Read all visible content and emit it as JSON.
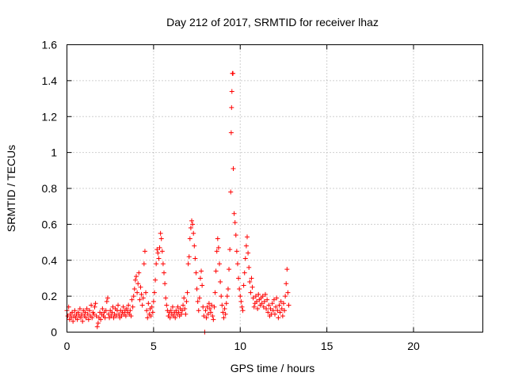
{
  "chart_data": {
    "type": "scatter",
    "title": "Day 212 of 2017, SRMTID for receiver lhaz",
    "xlabel": "GPS time / hours",
    "ylabel": "SRMTID / TECUs",
    "xlim": [
      0,
      24
    ],
    "ylim": [
      0,
      1.6
    ],
    "xticks": [
      0,
      5,
      10,
      15,
      20
    ],
    "xtick_labels": [
      "0",
      "5",
      "10",
      "15",
      "20"
    ],
    "yticks": [
      0,
      0.2,
      0.4,
      0.6,
      0.8,
      1,
      1.2,
      1.4,
      1.6
    ],
    "ytick_labels": [
      "0",
      "0.2",
      "0.4",
      "0.6",
      "0.8",
      "1",
      "1.2",
      "1.4",
      "1.6"
    ],
    "grid": true,
    "marker": "+",
    "series": [
      {
        "name": "SRMTID",
        "color": "#ff0000",
        "points": [
          [
            0.0,
            0.12
          ],
          [
            0.05,
            0.09
          ],
          [
            0.1,
            0.14
          ],
          [
            0.15,
            0.07
          ],
          [
            0.2,
            0.1
          ],
          [
            0.25,
            0.08
          ],
          [
            0.3,
            0.11
          ],
          [
            0.35,
            0.06
          ],
          [
            0.4,
            0.09
          ],
          [
            0.45,
            0.12
          ],
          [
            0.5,
            0.08
          ],
          [
            0.55,
            0.1
          ],
          [
            0.6,
            0.07
          ],
          [
            0.65,
            0.11
          ],
          [
            0.7,
            0.09
          ],
          [
            0.75,
            0.13
          ],
          [
            0.8,
            0.08
          ],
          [
            0.85,
            0.1
          ],
          [
            0.9,
            0.06
          ],
          [
            0.95,
            0.12
          ],
          [
            1.0,
            0.09
          ],
          [
            1.05,
            0.11
          ],
          [
            1.1,
            0.08
          ],
          [
            1.15,
            0.13
          ],
          [
            1.2,
            0.1
          ],
          [
            1.25,
            0.07
          ],
          [
            1.3,
            0.12
          ],
          [
            1.35,
            0.09
          ],
          [
            1.4,
            0.15
          ],
          [
            1.45,
            0.08
          ],
          [
            1.5,
            0.11
          ],
          [
            1.55,
            0.1
          ],
          [
            1.6,
            0.14
          ],
          [
            1.65,
            0.16
          ],
          [
            1.7,
            0.09
          ],
          [
            1.75,
            0.03
          ],
          [
            1.8,
            0.05
          ],
          [
            1.85,
            0.08
          ],
          [
            1.9,
            0.11
          ],
          [
            1.95,
            0.07
          ],
          [
            2.0,
            0.1
          ],
          [
            2.05,
            0.13
          ],
          [
            2.1,
            0.09
          ],
          [
            2.15,
            0.11
          ],
          [
            2.2,
            0.08
          ],
          [
            2.25,
            0.12
          ],
          [
            2.3,
            0.17
          ],
          [
            2.35,
            0.19
          ],
          [
            2.4,
            0.1
          ],
          [
            2.45,
            0.08
          ],
          [
            2.5,
            0.12
          ],
          [
            2.55,
            0.09
          ],
          [
            2.6,
            0.11
          ],
          [
            2.65,
            0.14
          ],
          [
            2.7,
            0.08
          ],
          [
            2.75,
            0.1
          ],
          [
            2.8,
            0.13
          ],
          [
            2.85,
            0.09
          ],
          [
            2.9,
            0.12
          ],
          [
            2.95,
            0.15
          ],
          [
            3.0,
            0.1
          ],
          [
            3.05,
            0.08
          ],
          [
            3.1,
            0.12
          ],
          [
            3.15,
            0.09
          ],
          [
            3.2,
            0.11
          ],
          [
            3.25,
            0.14
          ],
          [
            3.3,
            0.1
          ],
          [
            3.35,
            0.12
          ],
          [
            3.4,
            0.09
          ],
          [
            3.45,
            0.13
          ],
          [
            3.5,
            0.11
          ],
          [
            3.55,
            0.15
          ],
          [
            3.6,
            0.1
          ],
          [
            3.65,
            0.12
          ],
          [
            3.7,
            0.09
          ],
          [
            3.75,
            0.18
          ],
          [
            3.8,
            0.14
          ],
          [
            3.85,
            0.2
          ],
          [
            3.9,
            0.24
          ],
          [
            3.95,
            0.29
          ],
          [
            4.0,
            0.31
          ],
          [
            4.05,
            0.22
          ],
          [
            4.1,
            0.27
          ],
          [
            4.15,
            0.33
          ],
          [
            4.2,
            0.18
          ],
          [
            4.25,
            0.25
          ],
          [
            4.3,
            0.21
          ],
          [
            4.35,
            0.15
          ],
          [
            4.4,
            0.19
          ],
          [
            4.45,
            0.38
          ],
          [
            4.5,
            0.45
          ],
          [
            4.55,
            0.22
          ],
          [
            4.6,
            0.12
          ],
          [
            4.65,
            0.08
          ],
          [
            4.7,
            0.16
          ],
          [
            4.75,
            0.1
          ],
          [
            4.8,
            0.13
          ],
          [
            4.85,
            0.09
          ],
          [
            4.9,
            0.14
          ],
          [
            4.95,
            0.11
          ],
          [
            5.0,
            0.17
          ],
          [
            5.05,
            0.22
          ],
          [
            5.1,
            0.29
          ],
          [
            5.15,
            0.38
          ],
          [
            5.2,
            0.46
          ],
          [
            5.25,
            0.44
          ],
          [
            5.3,
            0.41
          ],
          [
            5.35,
            0.47
          ],
          [
            5.4,
            0.55
          ],
          [
            5.45,
            0.52
          ],
          [
            5.5,
            0.45
          ],
          [
            5.55,
            0.38
          ],
          [
            5.6,
            0.33
          ],
          [
            5.65,
            0.27
          ],
          [
            5.7,
            0.19
          ],
          [
            5.75,
            0.15
          ],
          [
            5.8,
            0.12
          ],
          [
            5.85,
            0.09
          ],
          [
            5.9,
            0.11
          ],
          [
            5.95,
            0.08
          ],
          [
            6.0,
            0.12
          ],
          [
            6.05,
            0.1
          ],
          [
            6.1,
            0.14
          ],
          [
            6.15,
            0.09
          ],
          [
            6.2,
            0.11
          ],
          [
            6.25,
            0.08
          ],
          [
            6.3,
            0.12
          ],
          [
            6.35,
            0.1
          ],
          [
            6.4,
            0.14
          ],
          [
            6.45,
            0.11
          ],
          [
            6.5,
            0.09
          ],
          [
            6.55,
            0.13
          ],
          [
            6.6,
            0.1
          ],
          [
            6.65,
            0.12
          ],
          [
            6.7,
            0.15
          ],
          [
            6.75,
            0.19
          ],
          [
            6.8,
            0.13
          ],
          [
            6.85,
            0.1
          ],
          [
            6.9,
            0.17
          ],
          [
            6.95,
            0.22
          ],
          [
            7.0,
            0.38
          ],
          [
            7.05,
            0.42
          ],
          [
            7.1,
            0.52
          ],
          [
            7.15,
            0.58
          ],
          [
            7.2,
            0.62
          ],
          [
            7.25,
            0.6
          ],
          [
            7.3,
            0.55
          ],
          [
            7.35,
            0.48
          ],
          [
            7.4,
            0.41
          ],
          [
            7.45,
            0.33
          ],
          [
            7.5,
            0.24
          ],
          [
            7.55,
            0.17
          ],
          [
            7.6,
            0.12
          ],
          [
            7.65,
            0.19
          ],
          [
            7.7,
            0.3
          ],
          [
            7.75,
            0.34
          ],
          [
            7.8,
            0.26
          ],
          [
            7.85,
            0.14
          ],
          [
            7.9,
            0.09
          ],
          [
            7.95,
            0.0
          ],
          [
            8.0,
            0.12
          ],
          [
            8.05,
            0.08
          ],
          [
            8.1,
            0.14
          ],
          [
            8.15,
            0.1
          ],
          [
            8.2,
            0.16
          ],
          [
            8.25,
            0.13
          ],
          [
            8.3,
            0.11
          ],
          [
            8.35,
            0.15
          ],
          [
            8.4,
            0.09
          ],
          [
            8.45,
            0.07
          ],
          [
            8.5,
            0.14
          ],
          [
            8.55,
            0.22
          ],
          [
            8.6,
            0.34
          ],
          [
            8.65,
            0.45
          ],
          [
            8.7,
            0.52
          ],
          [
            8.75,
            0.47
          ],
          [
            8.8,
            0.38
          ],
          [
            8.85,
            0.28
          ],
          [
            8.9,
            0.2
          ],
          [
            8.95,
            0.15
          ],
          [
            9.0,
            0.11
          ],
          [
            9.05,
            0.08
          ],
          [
            9.1,
            0.13
          ],
          [
            9.15,
            0.1
          ],
          [
            9.2,
            0.16
          ],
          [
            9.25,
            0.2
          ],
          [
            9.3,
            0.24
          ],
          [
            9.35,
            0.35
          ],
          [
            9.4,
            0.46
          ],
          [
            9.45,
            0.78
          ],
          [
            9.48,
            1.11
          ],
          [
            9.5,
            1.25
          ],
          [
            9.52,
            1.34
          ],
          [
            9.55,
            1.44
          ],
          [
            9.58,
            1.44
          ],
          [
            9.6,
            0.91
          ],
          [
            9.65,
            0.66
          ],
          [
            9.7,
            0.61
          ],
          [
            9.75,
            0.54
          ],
          [
            9.8,
            0.45
          ],
          [
            9.85,
            0.38
          ],
          [
            9.9,
            0.3
          ],
          [
            9.95,
            0.24
          ],
          [
            10.0,
            0.2
          ],
          [
            10.05,
            0.17
          ],
          [
            10.1,
            0.14
          ],
          [
            10.15,
            0.12
          ],
          [
            10.2,
            0.26
          ],
          [
            10.25,
            0.33
          ],
          [
            10.3,
            0.41
          ],
          [
            10.35,
            0.48
          ],
          [
            10.4,
            0.53
          ],
          [
            10.45,
            0.44
          ],
          [
            10.5,
            0.36
          ],
          [
            10.55,
            0.28
          ],
          [
            10.6,
            0.22
          ],
          [
            10.65,
            0.3
          ],
          [
            10.7,
            0.25
          ],
          [
            10.75,
            0.19
          ],
          [
            10.8,
            0.14
          ],
          [
            10.85,
            0.16
          ],
          [
            10.9,
            0.2
          ],
          [
            10.95,
            0.17
          ],
          [
            11.0,
            0.13
          ],
          [
            11.05,
            0.21
          ],
          [
            11.1,
            0.18
          ],
          [
            11.15,
            0.15
          ],
          [
            11.2,
            0.19
          ],
          [
            11.25,
            0.16
          ],
          [
            11.3,
            0.2
          ],
          [
            11.35,
            0.14
          ],
          [
            11.4,
            0.17
          ],
          [
            11.45,
            0.21
          ],
          [
            11.5,
            0.13
          ],
          [
            11.55,
            0.18
          ],
          [
            11.6,
            0.11
          ],
          [
            11.65,
            0.15
          ],
          [
            11.7,
            0.09
          ],
          [
            11.75,
            0.13
          ],
          [
            11.8,
            0.1
          ],
          [
            11.85,
            0.16
          ],
          [
            11.9,
            0.12
          ],
          [
            11.95,
            0.18
          ],
          [
            12.0,
            0.1
          ],
          [
            12.05,
            0.14
          ],
          [
            12.1,
            0.19
          ],
          [
            12.15,
            0.12
          ],
          [
            12.2,
            0.08
          ],
          [
            12.25,
            0.15
          ],
          [
            12.3,
            0.11
          ],
          [
            12.35,
            0.17
          ],
          [
            12.4,
            0.13
          ],
          [
            12.45,
            0.09
          ],
          [
            12.5,
            0.16
          ],
          [
            12.55,
            0.12
          ],
          [
            12.6,
            0.2
          ],
          [
            12.65,
            0.27
          ],
          [
            12.7,
            0.35
          ],
          [
            12.75,
            0.22
          ],
          [
            12.8,
            0.15
          ]
        ]
      }
    ]
  }
}
